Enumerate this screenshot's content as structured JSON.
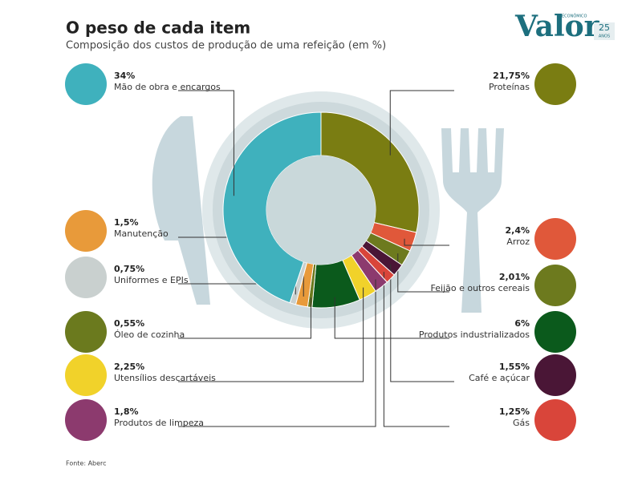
{
  "chart_data": {
    "type": "pie",
    "title": "O peso de cada item",
    "subtitle": "Composição dos custos de produção de uma refeição (em %)",
    "source": "Fonte: Aberc",
    "logo": {
      "name": "Valor",
      "tag": "ECONÔMICO",
      "years": "25",
      "years_label": "ANOS"
    },
    "categories": [
      "Proteínas",
      "Arroz",
      "Feijão e outros cereais",
      "Café e açúcar",
      "Gás",
      "Produtos de limpeza",
      "Utensílios descartáveis",
      "Produtos industrializados",
      "Óleo de cozinha",
      "Manutenção",
      "Uniformes e EPIs",
      "Mão de obra e encargos"
    ],
    "values": [
      21.75,
      2.4,
      2.01,
      1.55,
      1.25,
      1.8,
      2.25,
      6,
      0.55,
      1.5,
      0.75,
      34
    ],
    "value_labels": [
      "21,75%",
      "2,4%",
      "2,01%",
      "1,55%",
      "1,25%",
      "1,8%",
      "2,25%",
      "6%",
      "0,55%",
      "1,5%",
      "0,75%",
      "34%"
    ],
    "colors": [
      "#7a7d12",
      "#e0583a",
      "#6d7a1e",
      "#4a1636",
      "#d9453a",
      "#8c3a6e",
      "#f1d22a",
      "#0b5a1c",
      "#6b7a1e",
      "#e89a3a",
      "#c9d0cf",
      "#3fb1bd"
    ]
  }
}
